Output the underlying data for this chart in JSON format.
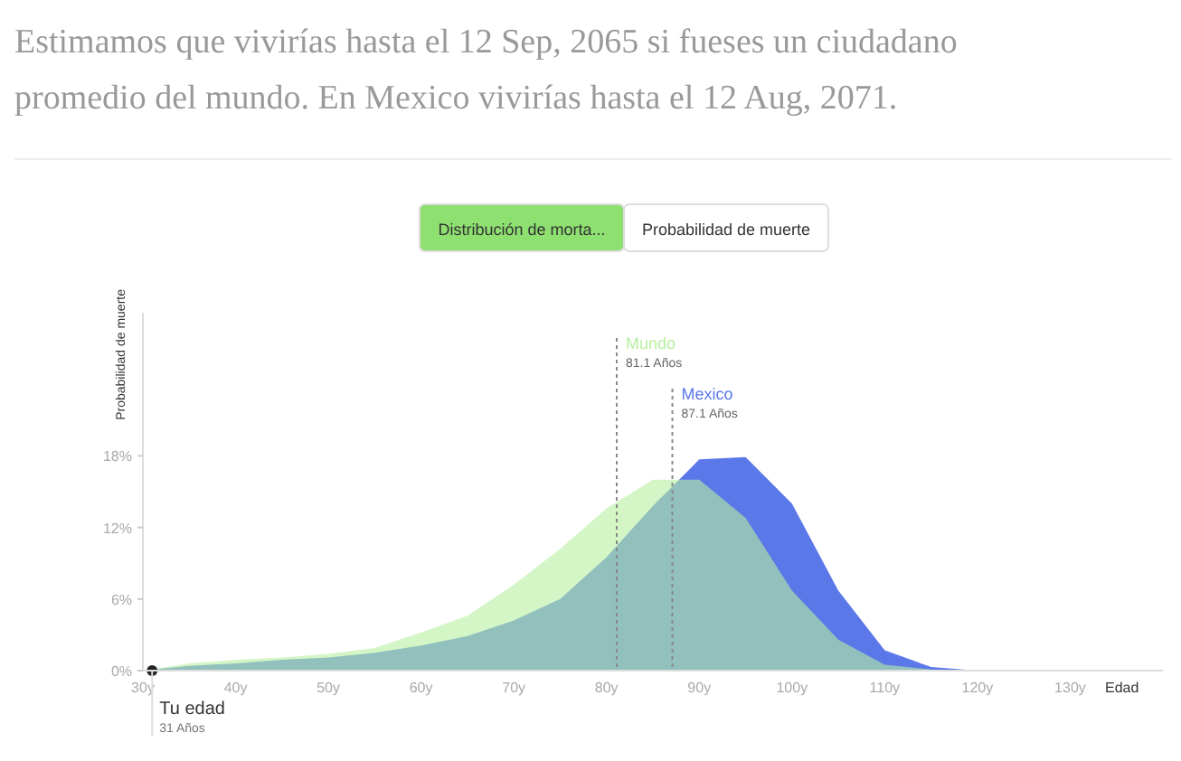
{
  "chart_data": {
    "type": "area",
    "title": "Estimamos que vivirías hasta el 12 Sep, 2065 si fueses un ciudadano promedio del mundo. En Mexico vivirías hasta el 12 Aug, 2071.",
    "xlabel": "Edad",
    "ylabel": "Probabilidad de muerte",
    "x": [
      30,
      35,
      40,
      45,
      50,
      55,
      60,
      65,
      70,
      75,
      80,
      85,
      90,
      95,
      100,
      105,
      110,
      115,
      120
    ],
    "series": [
      {
        "name": "Mexico",
        "color": "#5a78e8",
        "values": [
          0,
          0.4,
          0.6,
          0.9,
          1.1,
          1.5,
          2.1,
          2.9,
          4.2,
          6.0,
          9.5,
          13.8,
          17.7,
          17.9,
          14.0,
          6.7,
          1.7,
          0.3,
          0
        ]
      },
      {
        "name": "Mundo",
        "color": "#b8f0a0",
        "values": [
          0,
          0.6,
          0.9,
          1.1,
          1.4,
          1.9,
          3.2,
          4.6,
          7.2,
          10.2,
          13.6,
          16.0,
          16.0,
          12.8,
          6.7,
          2.6,
          0.5,
          0.1,
          0
        ]
      },
      {
        "type": "scatter",
        "color": "#222222",
        "x": [
          31
        ],
        "values": [
          0
        ]
      }
    ],
    "xlim": [
      30,
      140
    ],
    "xticks": [
      {
        "value": 30,
        "label": "30y"
      },
      {
        "value": 40,
        "label": "40y"
      },
      {
        "value": 50,
        "label": "50y"
      },
      {
        "value": 60,
        "label": "60y"
      },
      {
        "value": 70,
        "label": "70y"
      },
      {
        "value": 80,
        "label": "80y"
      },
      {
        "value": 90,
        "label": "90y"
      },
      {
        "value": 100,
        "label": "100y"
      },
      {
        "value": 110,
        "label": "110y"
      },
      {
        "value": 120,
        "label": "120y"
      },
      {
        "value": 130,
        "label": "130y"
      }
    ],
    "ylim": [
      0,
      30
    ],
    "yticks": [
      {
        "value": 0,
        "label": "0%"
      },
      {
        "value": 6,
        "label": "6%"
      },
      {
        "value": 12,
        "label": "12%"
      },
      {
        "value": 18,
        "label": "18%"
      }
    ],
    "ref_lines": [
      {
        "axis": "x",
        "value": 87.1,
        "label": "87.1 Años",
        "line_style": "dotted"
      },
      {
        "axis": "x",
        "value": 81.1,
        "label": "81.1 Años",
        "line_style": "dotted"
      }
    ],
    "annotations": [
      {
        "text": "Tu edad",
        "x": 31,
        "y": 0
      },
      {
        "text": "31 Años",
        "x": 31,
        "y": 0
      },
      "Distribución de morta...",
      "Probabilidad de muerte"
    ],
    "grid": false
  }
}
